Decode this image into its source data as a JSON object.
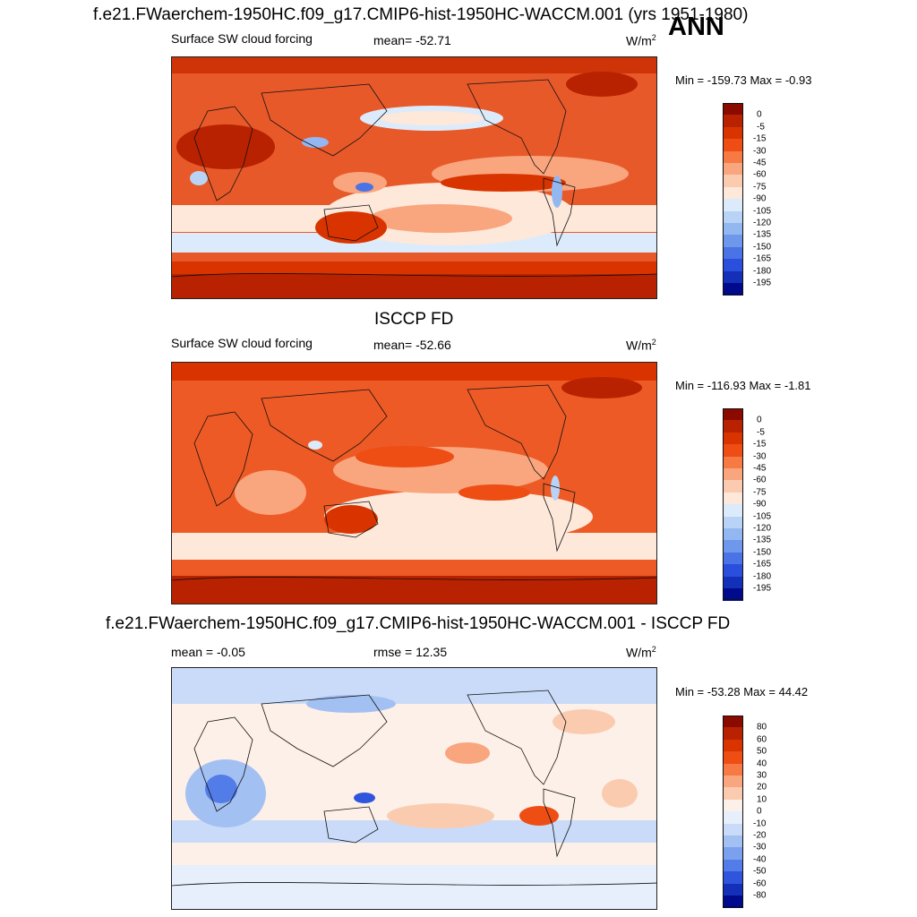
{
  "title": "f.e21.FWaerchem-1950HC.f09_g17.CMIP6-hist-1950HC-WACCM.001 (yrs 1951-1980)",
  "season": "ANN",
  "panels": [
    {
      "id": "model",
      "variable_label": "Surface SW cloud forcing",
      "stat_label": "mean= -52.71",
      "unit_base": "W/m",
      "unit_sup": "2",
      "minmax": "Min = -159.73 Max =  -0.93"
    },
    {
      "id": "obs",
      "heading": "ISCCP FD",
      "variable_label": "Surface SW cloud forcing",
      "stat_label": "mean= -52.66",
      "unit_base": "W/m",
      "unit_sup": "2",
      "minmax": "Min = -116.93 Max =  -1.81"
    },
    {
      "id": "diff",
      "heading": "f.e21.FWaerchem-1950HC.f09_g17.CMIP6-hist-1950HC-WACCM.001 - ISCCP FD",
      "variable_label": "mean =  -0.05",
      "stat_label": "rmse =  12.35",
      "unit_base": "W/m",
      "unit_sup": "2",
      "minmax": "Min = -53.28 Max =  44.42"
    }
  ],
  "colorbars": {
    "field": {
      "labels": [
        "0",
        "-5",
        "-15",
        "-30",
        "-45",
        "-60",
        "-75",
        "-90",
        "-105",
        "-120",
        "-135",
        "-150",
        "-165",
        "-180",
        "-195"
      ],
      "colors": [
        "#8b0a00",
        "#b82200",
        "#d93400",
        "#ee4d14",
        "#f77a45",
        "#f9a57e",
        "#fbcbb0",
        "#fde8da",
        "#dcebfb",
        "#b9d3f6",
        "#93b7f1",
        "#6e98ec",
        "#4a73e6",
        "#2a4fdd",
        "#1530b8",
        "#000a8c"
      ]
    },
    "diff": {
      "labels": [
        "80",
        "60",
        "50",
        "40",
        "30",
        "20",
        "10",
        "0",
        "-10",
        "-20",
        "-30",
        "-40",
        "-50",
        "-60",
        "-80"
      ],
      "colors": [
        "#8b0a00",
        "#b82200",
        "#d93400",
        "#ee4d14",
        "#f77a45",
        "#f9a57e",
        "#fbcbb0",
        "#fdf0e8",
        "#e6effb",
        "#c9dbf8",
        "#a3c0f3",
        "#7ba1ee",
        "#527ce7",
        "#2f55dd",
        "#1530b8",
        "#000a8c"
      ]
    }
  },
  "chart_data": [
    {
      "type": "heatmap",
      "title": "f.e21.FWaerchem-1950HC.f09_g17.CMIP6-hist-1950HC-WACCM.001 (yrs 1951-1980)",
      "subtitle": "Surface SW cloud forcing",
      "units": "W/m2",
      "mean": -52.71,
      "min": -159.73,
      "max": -0.93,
      "contour_levels": [
        0,
        -5,
        -15,
        -30,
        -45,
        -60,
        -75,
        -90,
        -105,
        -120,
        -135,
        -150,
        -165,
        -180,
        -195
      ],
      "colorbar_colors": [
        "#8b0a00",
        "#b82200",
        "#d93400",
        "#ee4d14",
        "#f77a45",
        "#f9a57e",
        "#fbcbb0",
        "#fde8da",
        "#dcebfb",
        "#b9d3f6",
        "#93b7f1",
        "#6e98ec",
        "#4a73e6",
        "#2a4fdd",
        "#1530b8",
        "#000a8c"
      ]
    },
    {
      "type": "heatmap",
      "title": "ISCCP FD",
      "subtitle": "Surface SW cloud forcing",
      "units": "W/m2",
      "mean": -52.66,
      "min": -116.93,
      "max": -1.81,
      "contour_levels": [
        0,
        -5,
        -15,
        -30,
        -45,
        -60,
        -75,
        -90,
        -105,
        -120,
        -135,
        -150,
        -165,
        -180,
        -195
      ],
      "colorbar_colors": [
        "#8b0a00",
        "#b82200",
        "#d93400",
        "#ee4d14",
        "#f77a45",
        "#f9a57e",
        "#fbcbb0",
        "#fde8da",
        "#dcebfb",
        "#b9d3f6",
        "#93b7f1",
        "#6e98ec",
        "#4a73e6",
        "#2a4fdd",
        "#1530b8",
        "#000a8c"
      ]
    },
    {
      "type": "heatmap",
      "title": "f.e21.FWaerchem-1950HC.f09_g17.CMIP6-hist-1950HC-WACCM.001 - ISCCP FD",
      "units": "W/m2",
      "mean": -0.05,
      "rmse": 12.35,
      "min": -53.28,
      "max": 44.42,
      "contour_levels": [
        80,
        60,
        50,
        40,
        30,
        20,
        10,
        0,
        -10,
        -20,
        -30,
        -40,
        -50,
        -60,
        -80
      ],
      "colorbar_colors": [
        "#8b0a00",
        "#b82200",
        "#d93400",
        "#ee4d14",
        "#f77a45",
        "#f9a57e",
        "#fbcbb0",
        "#fdf0e8",
        "#e6effb",
        "#c9dbf8",
        "#a3c0f3",
        "#7ba1ee",
        "#527ce7",
        "#2f55dd",
        "#1530b8",
        "#000a8c"
      ]
    }
  ]
}
